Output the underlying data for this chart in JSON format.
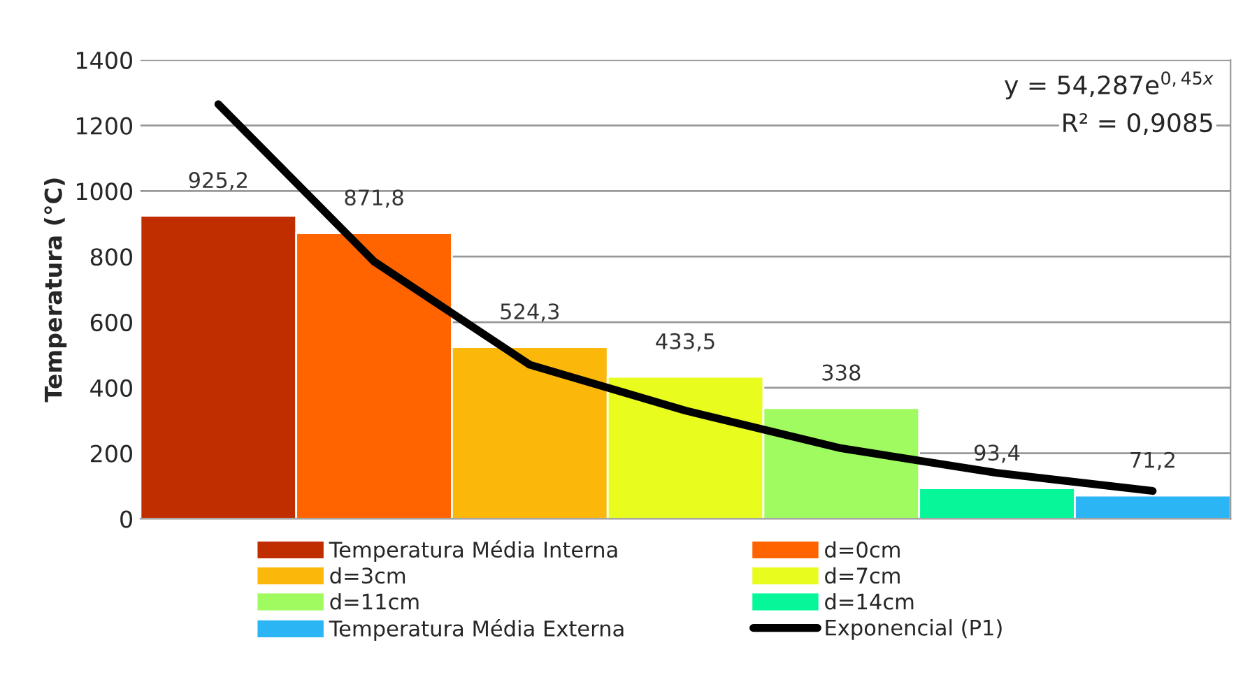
{
  "chart_data": {
    "type": "bar",
    "ylabel": "Temperatura (°C)",
    "categories": [
      null,
      null,
      null,
      null,
      null,
      null,
      null
    ],
    "series": [
      {
        "name": "Temperatura Média Interna",
        "color": "#c02e00",
        "values": [
          925.2,
          null,
          null,
          null,
          null,
          null,
          null
        ],
        "value_labels": [
          "925,2",
          null,
          null,
          null,
          null,
          null,
          null
        ]
      },
      {
        "name": "d=0cm",
        "color": "#ff6400",
        "values": [
          null,
          871.8,
          null,
          null,
          null,
          null,
          null
        ],
        "value_labels": [
          null,
          "871,8",
          null,
          null,
          null,
          null,
          null
        ]
      },
      {
        "name": "d=3cm",
        "color": "#fbb80a",
        "values": [
          null,
          null,
          524.3,
          null,
          null,
          null,
          null
        ],
        "value_labels": [
          null,
          null,
          "524,3",
          null,
          null,
          null,
          null
        ]
      },
      {
        "name": "d=7cm",
        "color": "#e8fc1e",
        "values": [
          null,
          null,
          null,
          433.5,
          null,
          null,
          null
        ],
        "value_labels": [
          null,
          null,
          null,
          "433,5",
          null,
          null,
          null
        ]
      },
      {
        "name": "d=11cm",
        "color": "#a0fb60",
        "values": [
          null,
          null,
          null,
          null,
          338,
          null,
          null
        ],
        "value_labels": [
          null,
          null,
          null,
          null,
          "338",
          null,
          null
        ]
      },
      {
        "name": "d=14cm",
        "color": "#05f79a",
        "values": [
          null,
          null,
          null,
          null,
          null,
          93.4,
          null
        ],
        "value_labels": [
          null,
          null,
          null,
          null,
          null,
          "93,4",
          null
        ]
      },
      {
        "name": "Temperatura Média Externa",
        "color": "#2cb5f5",
        "values": [
          null,
          null,
          null,
          null,
          null,
          null,
          71.2
        ],
        "value_labels": [
          null,
          null,
          null,
          null,
          null,
          null,
          "71,2"
        ]
      },
      {
        "name": "Exponencial (P1)",
        "type": "line",
        "color": "#000000",
        "values": [
          1265,
          785,
          470,
          330,
          215,
          140,
          85
        ]
      }
    ],
    "annotations": [
      "y = 54,287e$^{0,45x}$",
      "R² = 0,9085"
    ],
    "ylim": [
      0,
      1400
    ],
    "yticks": [
      0,
      200,
      400,
      600,
      800,
      1000,
      1200,
      1400
    ],
    "grid": "y",
    "legend": "bottom",
    "tick_labels": "y",
    "line_style": "solid"
  }
}
